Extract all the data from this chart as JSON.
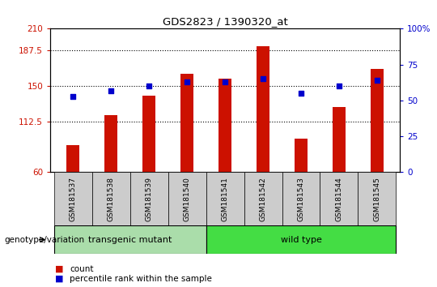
{
  "title": "GDS2823 / 1390320_at",
  "samples": [
    "GSM181537",
    "GSM181538",
    "GSM181539",
    "GSM181540",
    "GSM181541",
    "GSM181542",
    "GSM181543",
    "GSM181544",
    "GSM181545"
  ],
  "bar_values": [
    88,
    120,
    140,
    163,
    158,
    192,
    95,
    128,
    168
  ],
  "dot_values": [
    53,
    57,
    60,
    63,
    63,
    65,
    55,
    60,
    64
  ],
  "bar_color": "#cc1100",
  "dot_color": "#0000cc",
  "ylim_left": [
    60,
    210
  ],
  "ylim_right": [
    0,
    100
  ],
  "yticks_left": [
    60,
    112.5,
    150,
    187.5,
    210
  ],
  "yticks_right": [
    0,
    25,
    50,
    75,
    100
  ],
  "ytick_labels_left": [
    "60",
    "112.5",
    "150",
    "187.5",
    "210"
  ],
  "ytick_labels_right": [
    "0",
    "25",
    "50",
    "75",
    "100%"
  ],
  "hlines": [
    187.5,
    150,
    112.5
  ],
  "groups": [
    {
      "label": "transgenic mutant",
      "start": 0,
      "end": 3,
      "color": "#aaddaa"
    },
    {
      "label": "wild type",
      "start": 4,
      "end": 8,
      "color": "#44dd44"
    }
  ],
  "group_label": "genotype/variation",
  "legend_items": [
    {
      "label": "count",
      "color": "#cc1100"
    },
    {
      "label": "percentile rank within the sample",
      "color": "#0000cc"
    }
  ],
  "tick_label_area_color": "#cccccc",
  "bar_width": 0.35
}
